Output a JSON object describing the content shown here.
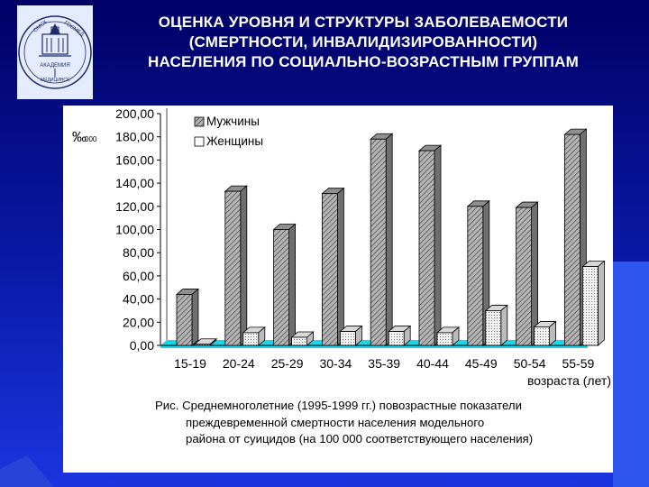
{
  "slide": {
    "title_lines": [
      "ОЦЕНКА УРОВНЯ И СТРУКТУРЫ ЗАБОЛЕВАЕМОСТИ",
      "(СМЕРТНОСТИ, ИНВАЛИДИЗИРОВАННОСТИ)",
      "НАСЕЛЕНИЯ ПО СОЦИАЛЬНО-ВОЗРАСТНЫМ ГРУППАМ"
    ]
  },
  "logo": {
    "text_top_left": "ОМСК",
    "text_top_right": "ГОСМЕД",
    "text_bottom_1": "АКАДЕМИЯ",
    "text_bottom_2": "МЕДИЦИНСК"
  },
  "caption_lines": [
    "Рис. Среднемноголетние (1995-1999 гг.) повозрастные  показатели",
    "преждевременной смертности населения модельного",
    "района от суицидов (на 100 000 соответствующего населения)"
  ],
  "colors": {
    "background_top": "#000066",
    "background_bottom": "#1a35e0",
    "side_accent": "#2f57f0",
    "floor": "#19d6e8",
    "bar_face": "#b4b4b4",
    "bar_women_face": "#f2f2f2"
  },
  "chart_data": {
    "type": "bar",
    "style": "3d-clustered",
    "categories": [
      "15-19",
      "20-24",
      "25-29",
      "30-34",
      "35-39",
      "40-44",
      "45-49",
      "50-54",
      "55-59"
    ],
    "series": [
      {
        "name": "Мужчины",
        "values": [
          44,
          133,
          100,
          131,
          178,
          168,
          120,
          119,
          182
        ]
      },
      {
        "name": "Женщины",
        "values": [
          1,
          11,
          7,
          12,
          12,
          11,
          30,
          16,
          68
        ]
      }
    ],
    "ylabel": "‰",
    "ylabel_subscript": "000",
    "xlabel": "возраста (лет)",
    "ylim": [
      0,
      200
    ],
    "yticks": [
      "0,00",
      "20,00",
      "40,00",
      "60,00",
      "80,00",
      "100,00",
      "120,00",
      "140,00",
      "160,00",
      "180,00",
      "200,00"
    ],
    "grid": false,
    "legend_position": "top-left"
  }
}
